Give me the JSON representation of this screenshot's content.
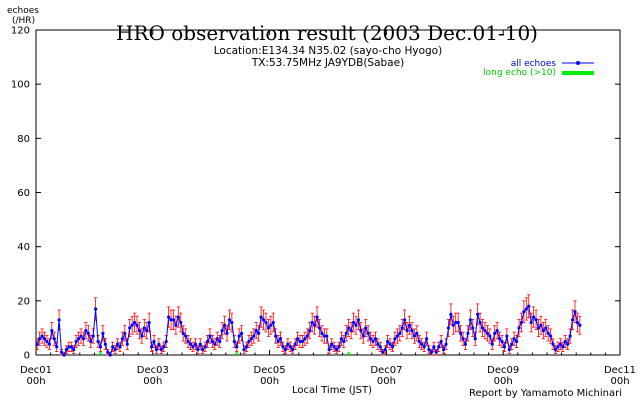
{
  "chart_data": {
    "type": "line",
    "title": "HRO observation result (2003 Dec.01-10)",
    "subtitle_lines": [
      "Location:E134.34 N35.02 (sayo-cho Hyogo)",
      "TX:53.75MHz JA9YDB(Sabae)"
    ],
    "ylabel_lines": [
      "echoes",
      "(/HR)"
    ],
    "xlabel": "Local Time (JST)",
    "credit": "Report by Yamamoto Michinari",
    "ylim": [
      0,
      120
    ],
    "yticks": [
      0,
      20,
      40,
      60,
      80,
      100,
      120
    ],
    "xlim_hours": [
      0,
      240
    ],
    "xticks": [
      {
        "hour": 0,
        "label1": "Dec01",
        "label2": "00h"
      },
      {
        "hour": 48,
        "label1": "Dec03",
        "label2": "00h"
      },
      {
        "hour": 96,
        "label1": "Dec05",
        "label2": "00h"
      },
      {
        "hour": 144,
        "label1": "Dec07",
        "label2": "00h"
      },
      {
        "hour": 192,
        "label1": "Dec09",
        "label2": "00h"
      },
      {
        "hour": 240,
        "label1": "Dec11",
        "label2": "00h"
      }
    ],
    "grid": false,
    "legend_position": "top-right",
    "series": [
      {
        "name": "all echoes",
        "color": "#0000ff",
        "style": "line-with-markers-and-errorbars",
        "errorbar_color": "#ff0000",
        "values": [
          4,
          6,
          7,
          6,
          5,
          4,
          9,
          6,
          3,
          13,
          1,
          0,
          2,
          3,
          3,
          2,
          5,
          6,
          7,
          6,
          9,
          8,
          5,
          7,
          17,
          5,
          3,
          8,
          4,
          1,
          0,
          3,
          2,
          4,
          3,
          6,
          8,
          4,
          10,
          11,
          12,
          11,
          9,
          7,
          10,
          9,
          12,
          3,
          5,
          2,
          4,
          2,
          3,
          5,
          14,
          13,
          13,
          11,
          14,
          12,
          8,
          7,
          5,
          4,
          3,
          4,
          2,
          4,
          2,
          3,
          5,
          7,
          5,
          4,
          6,
          5,
          9,
          11,
          8,
          13,
          12,
          5,
          3,
          7,
          8,
          2,
          3,
          5,
          6,
          7,
          9,
          8,
          14,
          13,
          12,
          10,
          11,
          12,
          7,
          5,
          6,
          3,
          2,
          4,
          3,
          2,
          4,
          6,
          5,
          5,
          6,
          7,
          9,
          12,
          11,
          14,
          10,
          8,
          7,
          7,
          2,
          4,
          3,
          2,
          3,
          6,
          5,
          8,
          10,
          9,
          12,
          11,
          13,
          9,
          7,
          10,
          8,
          6,
          5,
          6,
          4,
          3,
          1,
          2,
          5,
          4,
          3,
          6,
          7,
          8,
          10,
          13,
          9,
          11,
          9,
          7,
          8,
          5,
          4,
          3,
          6,
          2,
          1,
          3,
          1,
          3,
          5,
          2,
          4,
          10,
          15,
          11,
          12,
          12,
          8,
          6,
          4,
          8,
          13,
          10,
          6,
          15,
          12,
          10,
          9,
          8,
          7,
          4,
          8,
          9,
          6,
          5,
          3,
          7,
          2,
          4,
          6,
          5,
          10,
          12,
          16,
          17,
          18,
          12,
          14,
          13,
          10,
          11,
          9,
          10,
          8,
          7,
          4,
          2,
          3,
          4,
          3,
          5,
          4,
          7,
          13,
          16,
          12,
          11
        ]
      },
      {
        "name": "long echo (>10)",
        "color": "#00ee00",
        "style": "bars",
        "values": [
          0,
          0,
          0,
          0,
          0,
          0,
          0,
          0,
          0,
          0,
          0,
          0,
          0,
          0,
          0,
          0,
          0,
          0,
          0,
          0,
          0,
          0,
          0,
          0,
          0,
          0,
          1,
          0,
          0,
          0,
          0,
          0,
          0,
          0,
          0,
          0,
          0,
          0,
          0,
          0,
          0,
          0,
          0,
          0,
          0,
          0,
          0,
          0,
          0,
          0,
          0,
          0,
          0,
          0,
          0,
          0,
          0,
          0,
          0,
          0,
          0,
          0,
          0,
          0,
          0,
          0,
          0,
          0,
          0,
          0,
          0,
          0,
          0,
          0,
          0,
          0,
          0,
          0,
          0,
          0,
          0,
          0,
          1,
          0,
          0,
          0,
          0,
          0,
          0,
          0,
          0,
          0,
          0,
          0,
          0,
          0,
          0,
          0,
          0,
          0,
          0,
          0,
          0,
          0,
          0,
          0,
          0,
          0,
          0,
          0,
          0,
          0,
          0,
          0,
          0,
          0,
          0,
          0,
          0,
          0,
          0,
          0,
          0,
          0,
          0,
          0,
          0,
          0,
          1,
          0,
          0,
          0,
          0,
          0,
          0,
          0,
          0,
          0,
          0,
          0,
          0,
          0,
          0,
          0,
          0,
          0,
          0,
          0,
          0,
          0,
          0,
          0,
          0,
          0,
          0,
          0,
          0,
          0,
          0,
          0,
          0,
          0,
          0,
          0,
          0,
          0,
          0,
          0,
          0,
          0,
          0,
          0,
          0,
          0,
          0,
          0,
          0,
          0,
          0,
          0,
          0,
          0,
          0,
          0,
          0,
          0,
          0,
          0,
          0,
          0,
          0,
          0,
          0,
          0,
          0,
          0,
          0,
          0,
          0,
          0,
          0,
          0,
          0,
          0,
          0,
          0,
          0,
          0,
          0,
          0,
          0,
          0,
          0,
          0,
          0,
          0,
          0,
          0,
          0,
          0,
          0,
          0,
          0,
          0,
          0,
          0,
          0,
          0,
          0,
          0,
          0,
          0,
          0,
          0,
          0,
          0,
          0,
          0,
          0,
          0,
          0,
          0,
          0,
          0,
          0
        ]
      }
    ]
  }
}
